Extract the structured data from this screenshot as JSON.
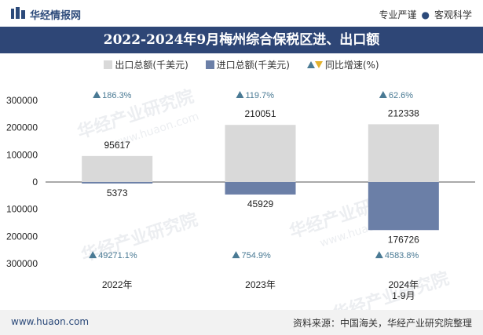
{
  "header": {
    "brand": "华经情报网",
    "tagline_1": "专业严谨",
    "tagline_2": "客观科学"
  },
  "title": "2022-2024年9月梅州综合保税区进、出口额",
  "legend": {
    "export": "出口总额(千美元)",
    "import": "进口总额(千美元)",
    "yoy": "同比增速(%)"
  },
  "watermark": {
    "text": "华经产业研究院",
    "url": "www.huaon.com"
  },
  "footer": {
    "url": "www.huaon.com",
    "source": "资料来源：中国海关，华经产业研究院整理"
  },
  "colors": {
    "export": "#d9d9d9",
    "import": "#6b7fa7",
    "yoy_up": "#4a7a94",
    "yoy_down": "#e3b22e",
    "title_band": "#2e4676"
  },
  "chart_data": {
    "type": "bar",
    "title": "2022-2024年9月梅州综合保税区进、出口额",
    "categories": [
      "2022年",
      "2023年",
      "2024年\n1-9月"
    ],
    "series": [
      {
        "name": "出口总额(千美元)",
        "values": [
          95617,
          210051,
          212338
        ],
        "labels": [
          "95617",
          "210051",
          "212338"
        ]
      },
      {
        "name": "进口总额(千美元)",
        "values": [
          -5373,
          -45929,
          -176726
        ],
        "labels": [
          "5373",
          "45929",
          "176726"
        ]
      }
    ],
    "yoy": {
      "name": "同比增速(%)",
      "export_labels": [
        "186.3%",
        "119.7%",
        "62.6%"
      ],
      "import_labels": [
        "49271.1%",
        "754.9%",
        "4583.8%"
      ]
    },
    "y_ticks": [
      300000,
      200000,
      100000,
      0,
      -100000,
      -200000,
      -300000
    ],
    "y_tick_labels": [
      "300000",
      "200000",
      "100000",
      "0",
      "100000",
      "200000",
      "300000"
    ],
    "ylim": [
      -300000,
      300000
    ]
  }
}
